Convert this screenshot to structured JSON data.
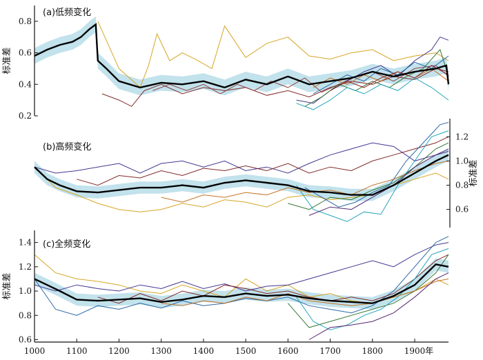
{
  "chart_data": [
    {
      "type": "line",
      "title": "(a)低频变化",
      "ylabel": "标准差",
      "ylim": [
        0.2,
        0.9
      ],
      "yticks": [
        0.2,
        0.4,
        0.6,
        0.8
      ],
      "xlim": [
        1000,
        1980
      ],
      "mean": {
        "x": [
          1000,
          1030,
          1060,
          1090,
          1110,
          1130,
          1145,
          1150,
          1170,
          1200,
          1250,
          1300,
          1350,
          1400,
          1450,
          1500,
          1550,
          1600,
          1650,
          1700,
          1750,
          1800,
          1850,
          1900,
          1950,
          1975,
          1980
        ],
        "y": [
          0.58,
          0.62,
          0.65,
          0.67,
          0.7,
          0.75,
          0.78,
          0.55,
          0.5,
          0.42,
          0.38,
          0.41,
          0.4,
          0.42,
          0.38,
          0.43,
          0.4,
          0.45,
          0.4,
          0.42,
          0.44,
          0.48,
          0.45,
          0.48,
          0.5,
          0.52,
          0.4
        ]
      },
      "series": [
        {
          "color": "#d4a017",
          "x": [
            1150,
            1200,
            1250,
            1270,
            1290,
            1320,
            1350,
            1380,
            1420,
            1450,
            1500,
            1550,
            1600,
            1650,
            1700,
            1750,
            1800,
            1850,
            1900,
            1950,
            1980
          ],
          "y": [
            0.8,
            0.5,
            0.38,
            0.52,
            0.72,
            0.55,
            0.6,
            0.56,
            0.5,
            0.77,
            0.57,
            0.66,
            0.7,
            0.58,
            0.56,
            0.6,
            0.62,
            0.55,
            0.58,
            0.6,
            0.55
          ]
        },
        {
          "color": "#7b1c1c",
          "x": [
            1160,
            1200,
            1230,
            1260,
            1300,
            1350,
            1400,
            1450,
            1500,
            1550,
            1600,
            1650,
            1700,
            1750,
            1800,
            1850,
            1900,
            1950,
            1980
          ],
          "y": [
            0.34,
            0.3,
            0.26,
            0.36,
            0.4,
            0.34,
            0.38,
            0.36,
            0.38,
            0.33,
            0.36,
            0.32,
            0.38,
            0.42,
            0.4,
            0.45,
            0.43,
            0.5,
            0.48
          ]
        },
        {
          "color": "#8b3a3a",
          "x": [
            1280,
            1320,
            1360,
            1400,
            1440,
            1480,
            1520,
            1560,
            1600,
            1640,
            1680,
            1720,
            1760,
            1800,
            1850,
            1900,
            1950,
            1980
          ],
          "y": [
            0.36,
            0.4,
            0.36,
            0.4,
            0.34,
            0.4,
            0.36,
            0.42,
            0.38,
            0.44,
            0.35,
            0.4,
            0.45,
            0.48,
            0.42,
            0.5,
            0.52,
            0.45
          ]
        },
        {
          "color": "#3a2a8a",
          "x": [
            1620,
            1660,
            1700,
            1740,
            1780,
            1820,
            1860,
            1900,
            1940,
            1960,
            1980
          ],
          "y": [
            0.3,
            0.28,
            0.36,
            0.42,
            0.48,
            0.52,
            0.45,
            0.55,
            0.62,
            0.7,
            0.68
          ]
        },
        {
          "color": "#2a6f2a",
          "x": [
            1640,
            1680,
            1720,
            1760,
            1800,
            1840,
            1880,
            1920,
            1960,
            1980
          ],
          "y": [
            0.26,
            0.32,
            0.4,
            0.36,
            0.42,
            0.38,
            0.45,
            0.5,
            0.62,
            0.45
          ]
        },
        {
          "color": "#1aa0b8",
          "x": [
            1620,
            1660,
            1700,
            1740,
            1780,
            1820,
            1860,
            1900,
            1940,
            1980
          ],
          "y": [
            0.28,
            0.24,
            0.3,
            0.38,
            0.34,
            0.4,
            0.36,
            0.44,
            0.38,
            0.3
          ]
        },
        {
          "color": "#1f5f9f",
          "x": [
            1660,
            1700,
            1740,
            1780,
            1820,
            1860,
            1900,
            1940,
            1980
          ],
          "y": [
            0.34,
            0.4,
            0.46,
            0.42,
            0.5,
            0.46,
            0.54,
            0.5,
            0.58
          ]
        },
        {
          "color": "#c06a18",
          "x": [
            1660,
            1700,
            1740,
            1780,
            1820,
            1860,
            1900,
            1940,
            1980
          ],
          "y": [
            0.38,
            0.44,
            0.4,
            0.46,
            0.42,
            0.48,
            0.44,
            0.5,
            0.42
          ]
        },
        {
          "color": "#8a1a1a",
          "x": [
            1700,
            1740,
            1780,
            1820,
            1860,
            1900,
            1940,
            1980
          ],
          "y": [
            0.36,
            0.42,
            0.38,
            0.44,
            0.48,
            0.44,
            0.52,
            0.46
          ]
        }
      ]
    },
    {
      "type": "line",
      "title": "(b)高频变化",
      "ylabel": "标准差",
      "ylim": [
        0.45,
        1.35
      ],
      "yticks": [
        0.6,
        0.8,
        1.0,
        1.2
      ],
      "xlim": [
        1000,
        1980
      ],
      "mean": {
        "x": [
          1000,
          1030,
          1060,
          1100,
          1150,
          1200,
          1250,
          1300,
          1350,
          1400,
          1450,
          1500,
          1550,
          1600,
          1650,
          1700,
          1750,
          1800,
          1850,
          1900,
          1950,
          1980
        ],
        "y": [
          0.95,
          0.85,
          0.8,
          0.75,
          0.74,
          0.76,
          0.78,
          0.78,
          0.8,
          0.78,
          0.82,
          0.84,
          0.82,
          0.8,
          0.75,
          0.74,
          0.72,
          0.72,
          0.8,
          0.9,
          1.0,
          1.05
        ]
      },
      "series": [
        {
          "color": "#3a2a8a",
          "x": [
            1000,
            1050,
            1100,
            1150,
            1200,
            1250,
            1300,
            1350,
            1400,
            1450,
            1500,
            1550,
            1600,
            1650,
            1700,
            1750,
            1800,
            1850,
            1900,
            1950,
            1980
          ],
          "y": [
            0.95,
            0.9,
            0.92,
            0.95,
            0.98,
            0.9,
            0.98,
            1.0,
            0.95,
            1.0,
            0.92,
            0.95,
            0.9,
            0.98,
            1.05,
            1.1,
            1.15,
            1.12,
            1.0,
            1.05,
            1.1
          ]
        },
        {
          "color": "#d4a017",
          "x": [
            1000,
            1050,
            1100,
            1150,
            1200,
            1250,
            1300,
            1350,
            1400,
            1450,
            1500,
            1550,
            1600,
            1650,
            1700,
            1750,
            1800,
            1850,
            1900,
            1950,
            1980
          ],
          "y": [
            0.95,
            0.78,
            0.72,
            0.65,
            0.6,
            0.58,
            0.6,
            0.65,
            0.62,
            0.68,
            0.66,
            0.62,
            0.7,
            0.72,
            0.68,
            0.7,
            0.72,
            0.8,
            0.85,
            0.9,
            0.85
          ]
        },
        {
          "color": "#7b1c1c",
          "x": [
            1100,
            1150,
            1200,
            1250,
            1300,
            1350,
            1400,
            1450,
            1500,
            1550,
            1600,
            1650,
            1700,
            1750,
            1800,
            1850,
            1900,
            1950,
            1980
          ],
          "y": [
            0.85,
            0.8,
            0.88,
            0.86,
            0.92,
            0.88,
            0.94,
            0.92,
            0.96,
            0.92,
            0.98,
            0.9,
            0.95,
            0.92,
            1.0,
            1.05,
            1.1,
            1.15,
            1.2
          ]
        },
        {
          "color": "#2a6f2a",
          "x": [
            1600,
            1650,
            1700,
            1750,
            1800,
            1850,
            1900,
            1950,
            1980
          ],
          "y": [
            0.65,
            0.6,
            0.7,
            0.68,
            0.76,
            0.82,
            0.95,
            1.1,
            1.15
          ]
        },
        {
          "color": "#1aa0b8",
          "x": [
            1620,
            1660,
            1700,
            1740,
            1780,
            1820,
            1860,
            1900,
            1940,
            1980
          ],
          "y": [
            0.8,
            0.6,
            0.55,
            0.5,
            0.58,
            0.56,
            0.8,
            1.0,
            1.2,
            1.25
          ]
        },
        {
          "color": "#1f5f9f",
          "x": [
            1640,
            1680,
            1720,
            1760,
            1800,
            1840,
            1880,
            1920,
            1960,
            1980
          ],
          "y": [
            0.78,
            0.7,
            0.62,
            0.66,
            0.74,
            0.8,
            1.0,
            1.15,
            1.3,
            1.32
          ]
        },
        {
          "color": "#c06a18",
          "x": [
            1300,
            1350,
            1400,
            1450,
            1500,
            1550,
            1600,
            1650,
            1700,
            1750,
            1800,
            1850,
            1900,
            1950,
            1980
          ],
          "y": [
            0.7,
            0.66,
            0.72,
            0.7,
            0.74,
            0.72,
            0.78,
            0.74,
            0.76,
            0.72,
            0.8,
            0.85,
            0.92,
            0.98,
            1.0
          ]
        },
        {
          "color": "#4a1a6a",
          "x": [
            1650,
            1700,
            1750,
            1800,
            1850,
            1900,
            1950,
            1980
          ],
          "y": [
            0.55,
            0.62,
            0.6,
            0.7,
            0.8,
            0.95,
            1.05,
            1.08
          ]
        }
      ]
    },
    {
      "type": "line",
      "title": "(c)全频变化",
      "ylabel": "标准差",
      "ylim": [
        0.58,
        1.5
      ],
      "yticks": [
        0.6,
        0.8,
        1.0,
        1.2,
        1.4
      ],
      "xlim": [
        1000,
        1980
      ],
      "xticks": [
        1000,
        1100,
        1200,
        1300,
        1400,
        1500,
        1600,
        1700,
        1800
      ],
      "last_xtick_label": "1900年",
      "last_xtick_value": 1900,
      "mean": {
        "x": [
          1000,
          1030,
          1060,
          1100,
          1150,
          1200,
          1250,
          1300,
          1350,
          1400,
          1450,
          1500,
          1550,
          1600,
          1650,
          1700,
          1750,
          1800,
          1850,
          1900,
          1950,
          1980
        ],
        "y": [
          1.1,
          1.05,
          1.0,
          0.93,
          0.92,
          0.93,
          0.94,
          0.91,
          0.93,
          0.96,
          0.95,
          0.98,
          0.96,
          0.97,
          0.94,
          0.92,
          0.91,
          0.9,
          0.96,
          1.05,
          1.22,
          1.2
        ]
      },
      "series": [
        {
          "color": "#d4a017",
          "x": [
            1000,
            1050,
            1100,
            1150,
            1200,
            1250,
            1300,
            1350,
            1400,
            1450,
            1500,
            1550,
            1600,
            1650,
            1700,
            1750,
            1800,
            1850,
            1900,
            1950,
            1980
          ],
          "y": [
            1.3,
            1.15,
            1.1,
            1.08,
            1.05,
            1.0,
            0.98,
            1.05,
            1.0,
            0.95,
            1.1,
            1.0,
            1.05,
            0.95,
            0.98,
            0.92,
            0.9,
            0.95,
            1.0,
            1.1,
            1.05
          ]
        },
        {
          "color": "#3a2a8a",
          "x": [
            1000,
            1050,
            1100,
            1150,
            1200,
            1250,
            1300,
            1350,
            1400,
            1450,
            1500,
            1550,
            1600,
            1650,
            1700,
            1750,
            1800,
            1850,
            1900,
            1950,
            1980
          ],
          "y": [
            1.05,
            1.0,
            1.05,
            1.02,
            1.0,
            1.05,
            1.02,
            1.08,
            1.02,
            1.06,
            1.0,
            1.04,
            1.05,
            1.1,
            1.15,
            1.2,
            1.25,
            1.2,
            1.3,
            1.38,
            1.4
          ]
        },
        {
          "color": "#1f5f9f",
          "x": [
            1000,
            1050,
            1100,
            1150,
            1200,
            1250,
            1300,
            1350,
            1400,
            1450,
            1500,
            1550,
            1600,
            1650,
            1700,
            1750,
            1800,
            1850,
            1900,
            1950,
            1980
          ],
          "y": [
            1.1,
            0.85,
            0.8,
            0.88,
            0.85,
            0.9,
            0.86,
            0.92,
            0.88,
            0.9,
            0.94,
            0.92,
            0.95,
            0.88,
            0.85,
            0.82,
            0.88,
            1.0,
            1.2,
            1.4,
            1.45
          ]
        },
        {
          "color": "#7b1c1c",
          "x": [
            1150,
            1200,
            1250,
            1300,
            1350,
            1400,
            1450,
            1500,
            1550,
            1600,
            1650,
            1700,
            1750,
            1800,
            1850,
            1900,
            1950,
            1980
          ],
          "y": [
            0.95,
            0.9,
            0.98,
            0.92,
            1.0,
            0.96,
            1.05,
            1.02,
            0.98,
            1.0,
            0.95,
            0.92,
            0.95,
            0.92,
            0.98,
            1.1,
            1.25,
            1.3
          ]
        },
        {
          "color": "#2a6f2a",
          "x": [
            1600,
            1650,
            1700,
            1750,
            1800,
            1850,
            1900,
            1950,
            1980
          ],
          "y": [
            0.9,
            0.7,
            0.75,
            0.8,
            0.85,
            0.9,
            1.0,
            1.15,
            1.3
          ]
        },
        {
          "color": "#1aa0b8",
          "x": [
            1620,
            1660,
            1700,
            1740,
            1780,
            1820,
            1860,
            1900,
            1940,
            1980
          ],
          "y": [
            0.95,
            0.75,
            0.68,
            0.72,
            0.8,
            0.85,
            0.95,
            1.1,
            1.3,
            1.35
          ]
        },
        {
          "color": "#c06a18",
          "x": [
            1300,
            1350,
            1400,
            1450,
            1500,
            1550,
            1600,
            1650,
            1700,
            1750,
            1800,
            1850,
            1900,
            1950,
            1980
          ],
          "y": [
            0.9,
            0.88,
            0.92,
            0.9,
            0.95,
            0.92,
            0.98,
            0.92,
            0.9,
            0.88,
            0.9,
            0.95,
            1.0,
            1.08,
            1.1
          ]
        },
        {
          "color": "#4a1a6a",
          "x": [
            1650,
            1700,
            1750,
            1800,
            1850,
            1900,
            1950,
            1980
          ],
          "y": [
            0.6,
            0.7,
            0.72,
            0.75,
            0.82,
            0.95,
            1.1,
            1.15
          ]
        }
      ]
    }
  ]
}
